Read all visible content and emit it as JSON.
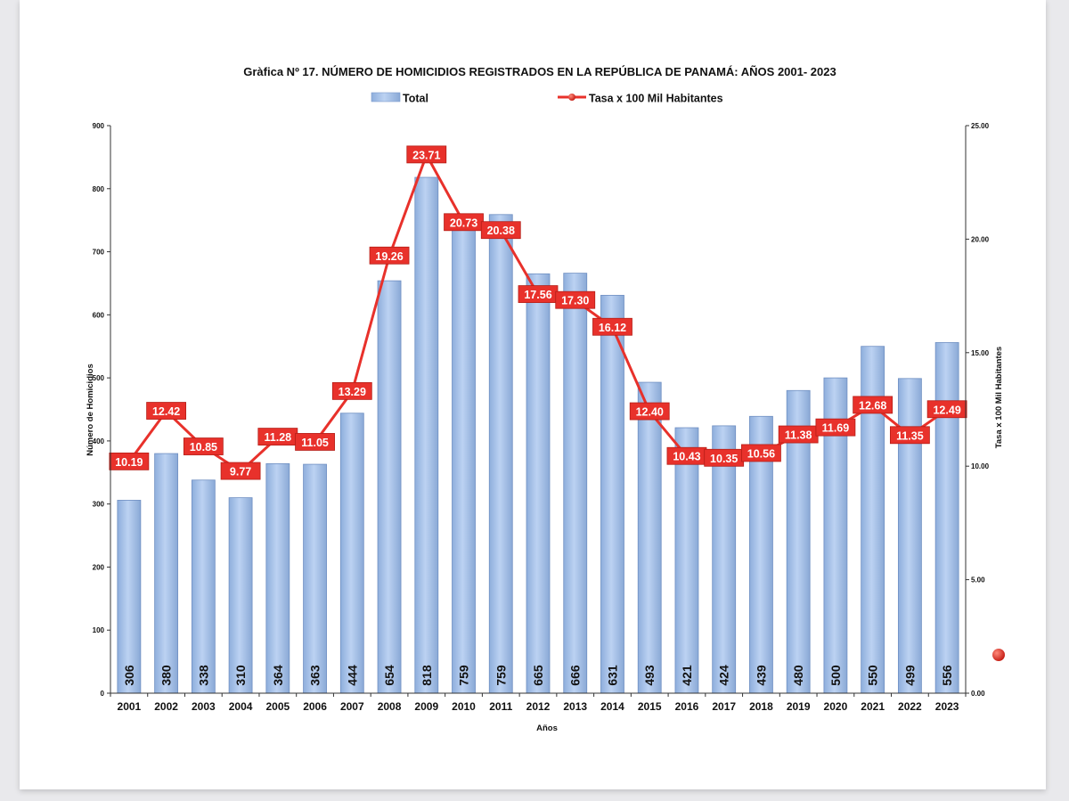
{
  "chart_data": {
    "type": "bar",
    "title": "Gràfica Nº 17.   NÚMERO DE HOMICIDIOS REGISTRADOS EN LA REPÚBLICA DE PANAMÁ: AÑOS 2001- 2023",
    "xlabel": "Años",
    "ylabel": "Número de Homicidios",
    "y2label": "Tasa x 100  Mil Habitantes",
    "ylim": [
      0,
      900
    ],
    "y2lim": [
      0,
      25
    ],
    "yticks": [
      "0",
      "100",
      "200",
      "300",
      "400",
      "500",
      "600",
      "700",
      "800",
      "900"
    ],
    "y2ticks": [
      "0.00",
      "5.00",
      "10.00",
      "15.00",
      "20.00",
      "25.00"
    ],
    "legend": {
      "position": "top",
      "bar_label": "Total",
      "line_label": "Tasa x 100 Mil Habitantes"
    },
    "categories": [
      "2001",
      "2002",
      "2003",
      "2004",
      "2005",
      "2006",
      "2007",
      "2008",
      "2009",
      "2010",
      "2011",
      "2012",
      "2013",
      "2014",
      "2015",
      "2016",
      "2017",
      "2018",
      "2019",
      "2020",
      "2021",
      "2022",
      "2023"
    ],
    "series": [
      {
        "name": "Total",
        "type": "bar",
        "axis": "left",
        "color": "#a9c5eb",
        "values": [
          306,
          380,
          338,
          310,
          364,
          363,
          444,
          654,
          818,
          759,
          759,
          665,
          666,
          631,
          493,
          421,
          424,
          439,
          480,
          500,
          550,
          499,
          556
        ]
      },
      {
        "name": "Tasa x 100 Mil Habitantes",
        "type": "line",
        "axis": "right",
        "color": "#e8312b",
        "values": [
          10.19,
          12.42,
          10.85,
          9.77,
          11.28,
          11.05,
          13.29,
          19.26,
          23.71,
          20.73,
          20.38,
          17.56,
          17.3,
          16.12,
          12.4,
          10.43,
          10.35,
          10.56,
          11.38,
          11.69,
          12.68,
          11.35,
          12.49
        ],
        "labels": [
          "10.19",
          "12.42",
          "10.85",
          "9.77",
          "11.28",
          "11.05",
          "13.29",
          "19.26",
          "23.71",
          "20.73",
          "20.38",
          "17.56",
          "17.30",
          "16.12",
          "12.40",
          "10.43",
          "10.35",
          "10.56",
          "11.38",
          "11.69",
          "12.68",
          "11.35",
          "12.49"
        ]
      }
    ]
  }
}
